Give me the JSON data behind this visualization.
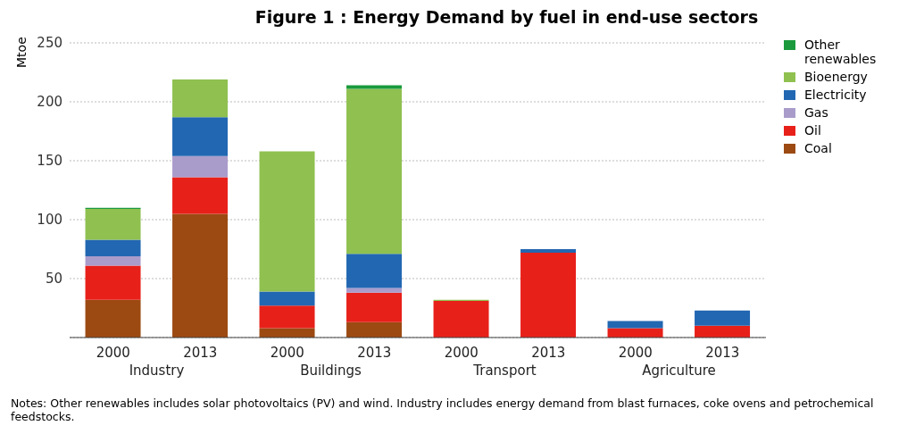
{
  "chart_data": {
    "type": "bar",
    "title": "Figure 1 : Energy Demand by fuel in end-use sectors",
    "ylabel": "Mtoe",
    "categories": [
      "2000",
      "2013",
      "2000",
      "2013",
      "2000",
      "2013",
      "2000",
      "2013"
    ],
    "stacked": true,
    "series": [
      {
        "name": "Coal",
        "color": "#9c4a12",
        "values": [
          32,
          105,
          8,
          13,
          0,
          0,
          0,
          0
        ]
      },
      {
        "name": "Oil",
        "color": "#e8201a",
        "values": [
          29,
          31,
          19,
          25,
          31,
          72,
          8,
          10
        ]
      },
      {
        "name": "Gas",
        "color": "#a99ccb",
        "values": [
          8,
          18,
          0,
          4,
          0,
          0,
          0,
          0
        ]
      },
      {
        "name": "Electricity",
        "color": "#2267b2",
        "values": [
          14,
          33,
          12,
          29,
          0,
          3,
          6,
          13
        ]
      },
      {
        "name": "Bioenergy",
        "color": "#8fc050",
        "values": [
          26,
          32,
          119,
          140,
          1,
          0,
          0,
          0
        ]
      },
      {
        "name": "Other renewables",
        "color": "#1a9a3c",
        "values": [
          1,
          0,
          0,
          3,
          0,
          0,
          0,
          0
        ]
      }
    ],
    "ylim": [
      0,
      250
    ],
    "yticks": [
      50,
      100,
      150,
      200,
      250
    ],
    "grid": "y",
    "legend": "right",
    "annotations": [
      "Industry",
      "Buildings",
      "Transport",
      "Agriculture",
      "Notes: Other renewables includes solar photovoltaics (PV) and wind. Industry includes energy demand from blast furnaces, coke ovens and petrochemical feedstocks."
    ]
  }
}
